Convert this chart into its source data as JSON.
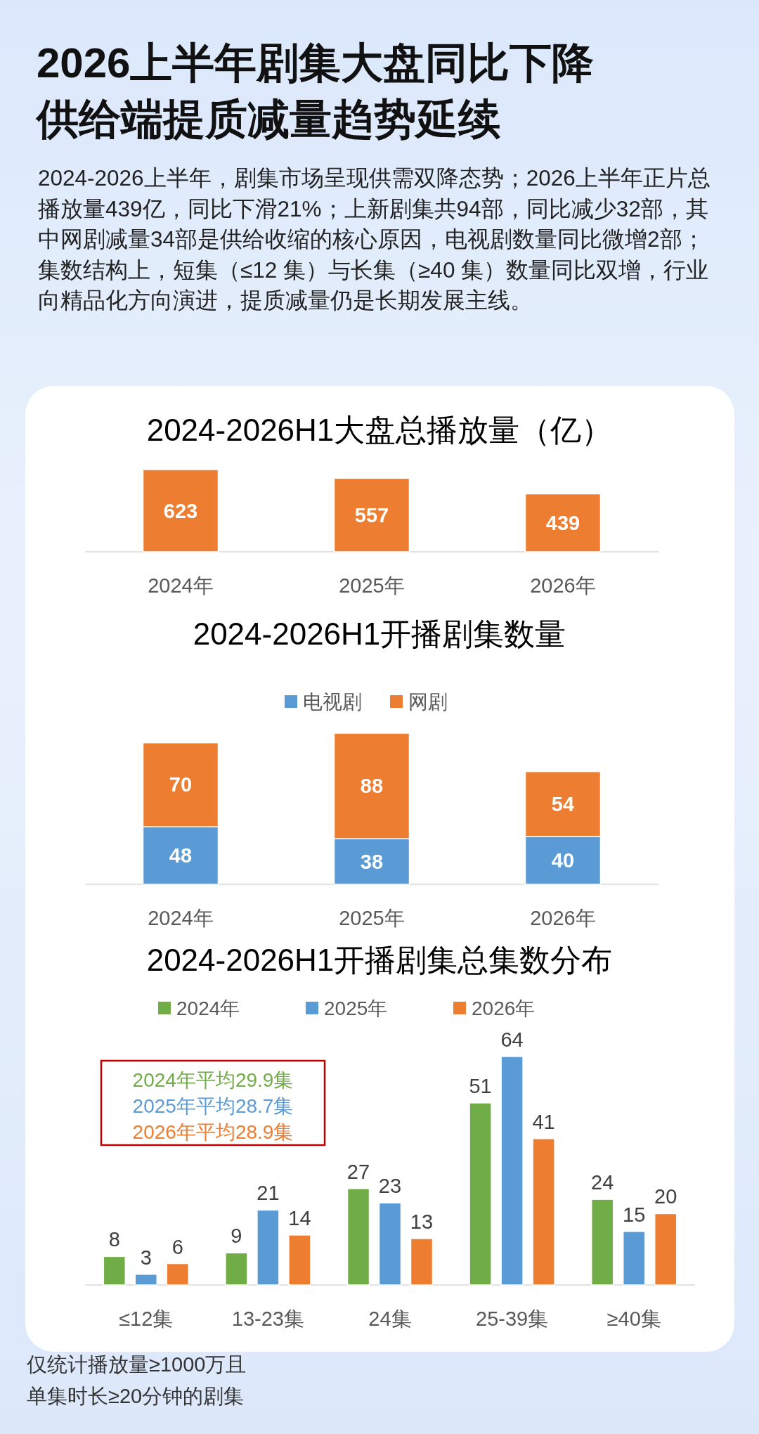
{
  "chart_data": [
    {
      "type": "bar",
      "title": "2024-2026H1大盘总播放量（亿）",
      "categories": [
        "2024年",
        "2025年",
        "2026年"
      ],
      "values": [
        623,
        557,
        439
      ],
      "color": "#ed7d31",
      "data_labels": true,
      "annotations": [
        "2026上半年剧集大盘同比下降",
        "供给端提质减量趋势延续",
        "2024-2026上半年，剧集市场呈现供需双降态势；2026上半年正片总播放量439亿，同比下滑21%；上新剧集共94部，同比减少32部，其中网剧减量34部是供给收缩的核心原因，电视剧数量同比微增2部；集数结构上，短集（≤12 集）与长集（≥40 集）数量同比双增，行业向精品化方向演进，提质减量仍是长期发展主线。"
      ]
    },
    {
      "type": "bar",
      "title": "2024-2026H1开播剧集数量",
      "categories": [
        "2024年",
        "2025年",
        "2026年"
      ],
      "stacked": true,
      "legend": "top",
      "data_labels": true,
      "series": [
        {
          "name": "电视剧",
          "color": "#5b9bd5",
          "values": [
            48,
            38,
            40
          ]
        },
        {
          "name": "网剧",
          "color": "#ed7d31",
          "values": [
            70,
            88,
            54
          ]
        }
      ]
    },
    {
      "type": "bar",
      "title": "2024-2026H1开播剧集总集数分布",
      "categories": [
        "≤12集",
        "13-23集",
        "24集",
        "25-39集",
        "≥40集"
      ],
      "legend": "top",
      "data_labels": true,
      "series": [
        {
          "name": "2024年",
          "color": "#70ad47",
          "values": [
            8,
            9,
            27,
            51,
            24
          ]
        },
        {
          "name": "2025年",
          "color": "#5b9bd5",
          "values": [
            3,
            21,
            23,
            64,
            15
          ]
        },
        {
          "name": "2026年",
          "color": "#ed7d31",
          "values": [
            6,
            14,
            13,
            41,
            20
          ]
        }
      ],
      "annotations": [
        "2024年平均29.9集",
        "2025年平均28.7集",
        "2026年平均28.9集",
        "仅统计播放量≥1000万且",
        "单集时长≥20分钟的剧集"
      ]
    }
  ]
}
